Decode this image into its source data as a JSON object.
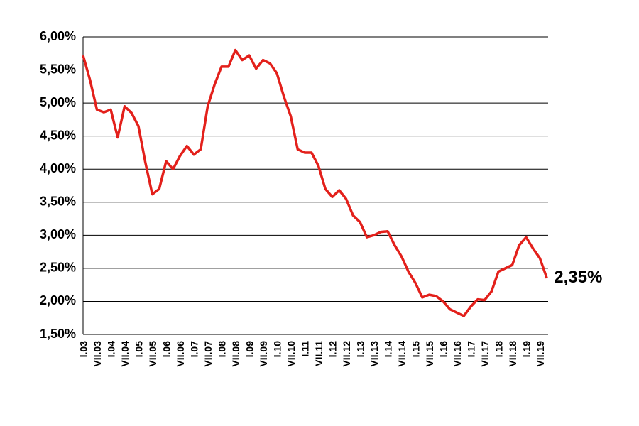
{
  "chart_data": {
    "type": "line",
    "categories": [
      "I.03",
      null,
      "VII.03",
      null,
      "I.04",
      null,
      "VII.04",
      null,
      "I.05",
      null,
      "VII.05",
      null,
      "I.06",
      null,
      "VII.06",
      null,
      "I.07",
      null,
      "VII.07",
      null,
      "I.08",
      null,
      "VII.08",
      null,
      "I.09",
      null,
      "VII.09",
      null,
      "I.10",
      null,
      "VII.10",
      null,
      "I.11",
      null,
      "VII.11",
      null,
      "I.12",
      null,
      "VII.12",
      null,
      "I.13",
      null,
      "VII.13",
      null,
      "I.14",
      null,
      "VII.14",
      null,
      "I.15",
      null,
      "VII.15",
      null,
      "I.16",
      null,
      "VII.16",
      null,
      "I.17",
      null,
      "VII.17",
      null,
      "I.18",
      null,
      "VII.18",
      null,
      "I.19",
      null,
      "VII.19",
      null
    ],
    "series": [
      {
        "color": "#e3201b",
        "values": [
          5.72,
          5.35,
          4.9,
          4.86,
          4.9,
          4.48,
          4.95,
          4.85,
          4.65,
          4.1,
          3.62,
          3.7,
          4.12,
          4.0,
          4.2,
          4.35,
          4.22,
          4.3,
          4.95,
          5.28,
          5.55,
          5.55,
          5.8,
          5.65,
          5.72,
          5.52,
          5.65,
          5.6,
          5.45,
          5.1,
          4.8,
          4.3,
          4.25,
          4.25,
          4.05,
          3.7,
          3.58,
          3.68,
          3.55,
          3.3,
          3.2,
          2.97,
          3.0,
          3.05,
          3.06,
          2.85,
          2.68,
          2.45,
          2.28,
          2.06,
          2.1,
          2.08,
          2.0,
          1.88,
          1.83,
          1.78,
          1.92,
          2.03,
          2.02,
          2.15,
          2.45,
          2.5,
          2.55,
          2.85,
          2.97,
          2.8,
          2.65,
          2.35
        ],
        "value_labels": [
          null,
          null,
          null,
          null,
          null,
          null,
          null,
          null,
          null,
          null,
          null,
          null,
          null,
          null,
          null,
          null,
          null,
          null,
          null,
          null,
          null,
          null,
          null,
          null,
          null,
          null,
          null,
          null,
          null,
          null,
          null,
          null,
          null,
          null,
          null,
          null,
          null,
          null,
          null,
          null,
          null,
          null,
          null,
          null,
          null,
          null,
          null,
          null,
          null,
          null,
          null,
          null,
          null,
          null,
          null,
          null,
          null,
          null,
          null,
          null,
          null,
          null,
          null,
          null,
          null,
          null,
          null,
          "2,35%"
        ]
      }
    ],
    "ylim": [
      1.5,
      6.0
    ],
    "yticks": [
      {
        "value": 1.5,
        "label": "1,50%"
      },
      {
        "value": 2.0,
        "label": "2,00%"
      },
      {
        "value": 2.5,
        "label": "2,50%"
      },
      {
        "value": 3.0,
        "label": "3,00%"
      },
      {
        "value": 3.5,
        "label": "3,50%"
      },
      {
        "value": 4.0,
        "label": "4,00%"
      },
      {
        "value": 4.5,
        "label": "4,50%"
      },
      {
        "value": 5.0,
        "label": "5,00%"
      },
      {
        "value": 5.5,
        "label": "5,50%"
      },
      {
        "value": 6.0,
        "label": "6,00%"
      }
    ],
    "grid": true
  }
}
